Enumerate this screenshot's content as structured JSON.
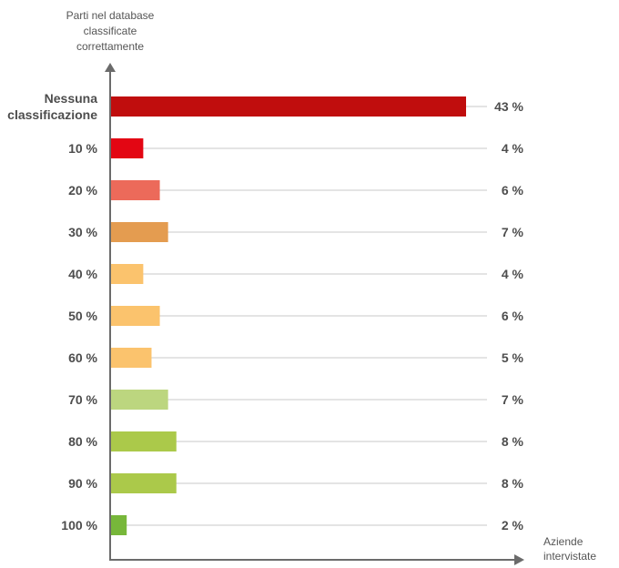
{
  "chart_data": {
    "type": "bar",
    "orientation": "horizontal",
    "ylabel": [
      "Parti nel database",
      "classificate",
      "correttamente"
    ],
    "xlabel": [
      "Aziende",
      "intervistate"
    ],
    "xlim": [
      0,
      43
    ],
    "grid": true,
    "categories": [
      [
        "Nessuna",
        "classificazione"
      ],
      [
        "10 %"
      ],
      [
        "20 %"
      ],
      [
        "30 %"
      ],
      [
        "40 %"
      ],
      [
        "50 %"
      ],
      [
        "60 %"
      ],
      [
        "70 %"
      ],
      [
        "80 %"
      ],
      [
        "90 %"
      ],
      [
        "100 %"
      ]
    ],
    "values": [
      43,
      4,
      6,
      7,
      4,
      6,
      5,
      7,
      8,
      8,
      2
    ],
    "value_labels": [
      "43 %",
      "4 %",
      "6 %",
      "7 %",
      "4 %",
      "6 %",
      "5 %",
      "7 %",
      "8 %",
      "8 %",
      "2 %"
    ],
    "colors": [
      "#c00d0d",
      "#e30613",
      "#ec6a5a",
      "#e49c50",
      "#fbc36d",
      "#fbc36d",
      "#fbc36d",
      "#bcd67f",
      "#abc94a",
      "#abc94a",
      "#77b73a"
    ]
  }
}
